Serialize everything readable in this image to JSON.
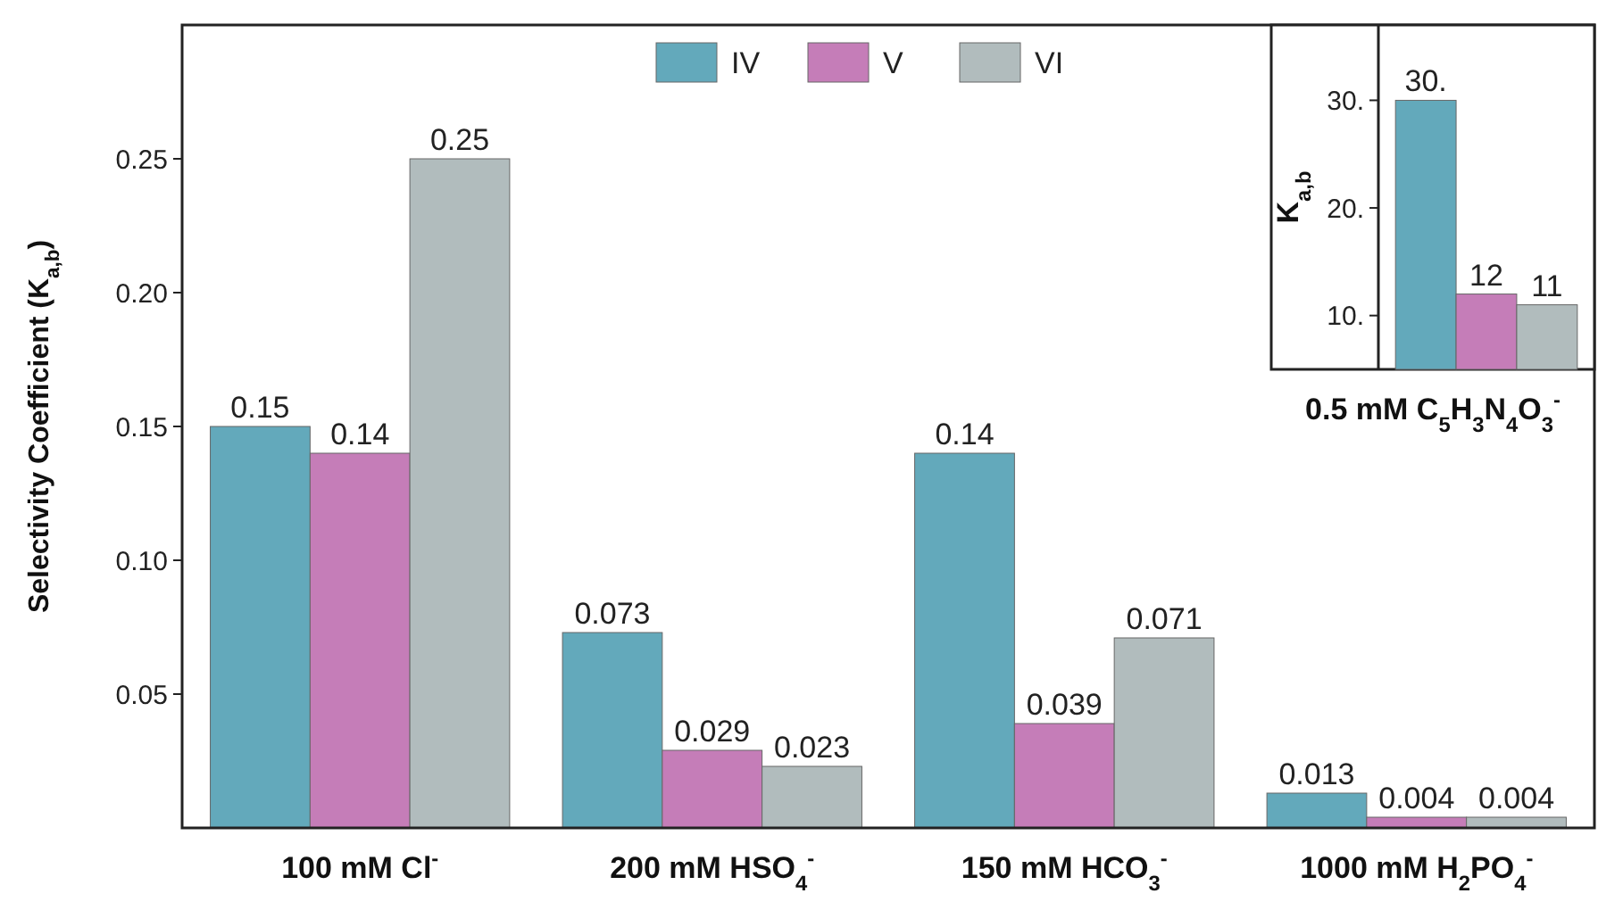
{
  "chart_data": [
    {
      "type": "bar",
      "ylabel": "Selectivity Coefficient (K$_{a,b}$)",
      "categories": [
        "100 mM Cl$^{-}$",
        "200 mM HSO$_{4}$$^{-}$",
        "150 mM HCO$_{3}$$^{-}$",
        "1000 mM H$_{2}$PO$_{4}$$^{-}$"
      ],
      "series": [
        {
          "name": "IV",
          "color": "#63a9bb",
          "values": [
            0.15,
            0.073,
            0.14,
            0.013
          ]
        },
        {
          "name": "V",
          "color": "#c57db8",
          "values": [
            0.14,
            0.029,
            0.039,
            0.004
          ]
        },
        {
          "name": "VI",
          "color": "#b1bcbd",
          "values": [
            0.25,
            0.023,
            0.071,
            0.004
          ]
        }
      ],
      "ylim": [
        0,
        0.3
      ],
      "yticks": [
        {
          "value": 0.05,
          "label": "0.05"
        },
        {
          "value": 0.1,
          "label": "0.10"
        },
        {
          "value": 0.15,
          "label": "0.15"
        },
        {
          "value": 0.2,
          "label": "0.20"
        },
        {
          "value": 0.25,
          "label": "0.25"
        }
      ],
      "data_labels": true,
      "legend": "top",
      "grid": false
    },
    {
      "type": "bar",
      "ylabel": "K$_{a,b}$",
      "categories": [
        "0.5 mM C$_{5}$H$_{3}$N$_{4}$O$_{3}$$^{-}$"
      ],
      "series": [
        {
          "color": "#63a9bb",
          "values": [
            30
          ],
          "value_labels": [
            "30."
          ]
        },
        {
          "color": "#c57db8",
          "values": [
            12
          ],
          "value_labels": [
            "12"
          ]
        },
        {
          "color": "#b1bcbd",
          "values": [
            11
          ],
          "value_labels": [
            "11"
          ]
        }
      ],
      "ylim": [
        5,
        37
      ],
      "yticks": [
        {
          "value": 10,
          "label": "10."
        },
        {
          "value": 20,
          "label": "20."
        },
        {
          "value": 30,
          "label": "30."
        }
      ],
      "grid": false
    }
  ]
}
